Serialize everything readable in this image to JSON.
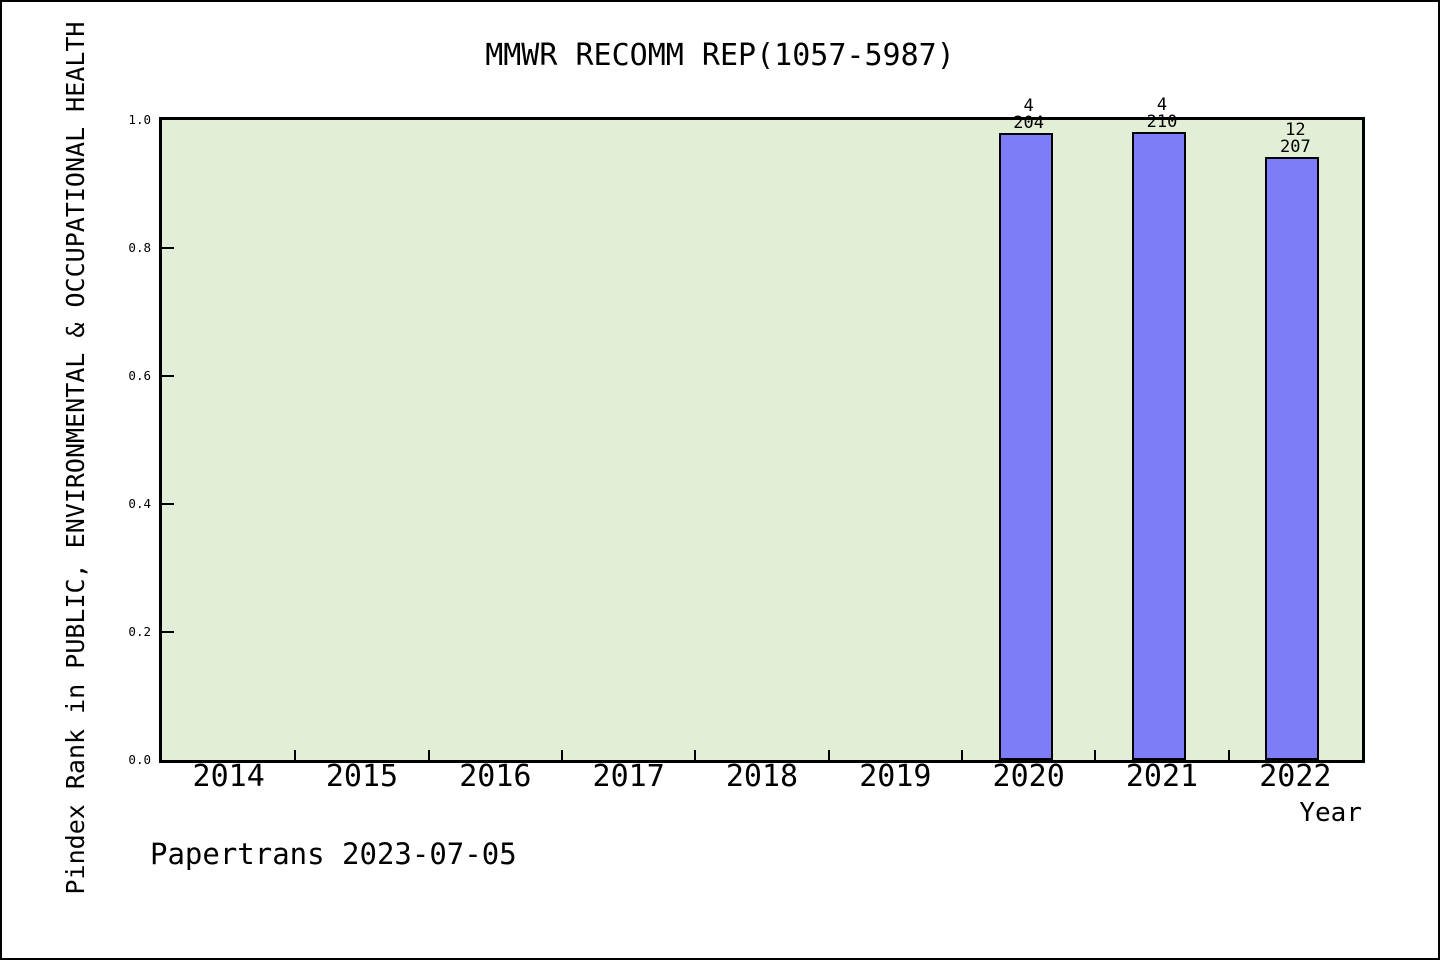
{
  "window": {
    "background": "#ffffff",
    "border_color": "#000000"
  },
  "chart_data": {
    "type": "bar",
    "title": "MMWR RECOMM REP(1057-5987)",
    "xlabel": "Year",
    "ylabel": "Pindex Rank in PUBLIC, ENVIRONMENTAL & OCCUPATIONAL HEALTH",
    "categories": [
      "2014",
      "2015",
      "2016",
      "2017",
      "2018",
      "2019",
      "2020",
      "2021",
      "2022"
    ],
    "values": [
      null,
      null,
      null,
      null,
      null,
      null,
      0.98,
      0.981,
      0.942
    ],
    "bar_labels": [
      null,
      null,
      null,
      null,
      null,
      null,
      "4/204",
      "4/210",
      "12/207"
    ],
    "bars": [
      {
        "category": "2020",
        "rank": "4",
        "total": "204",
        "value": 0.98
      },
      {
        "category": "2021",
        "rank": "4",
        "total": "210",
        "value": 0.981
      },
      {
        "category": "2022",
        "rank": "12",
        "total": "207",
        "value": 0.942
      }
    ],
    "ylim": [
      0.0,
      1.0
    ],
    "yticks": [
      "0.0",
      "0.2",
      "0.4",
      "0.6",
      "0.8",
      "1.0"
    ],
    "grid": false,
    "legend": null,
    "colors": {
      "bar_fill": "#7d7df7",
      "bar_edge": "#000000",
      "plot_bg": "#e2eed6",
      "frame": "#000000",
      "text": "#000000"
    }
  },
  "footer": {
    "watermark": "Papertrans 2023-07-05"
  }
}
